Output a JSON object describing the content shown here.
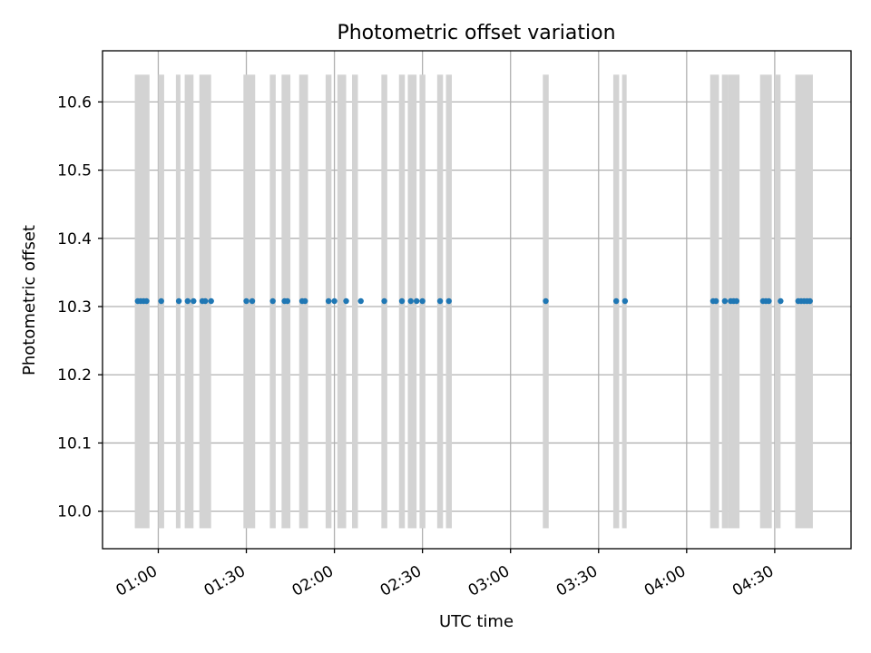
{
  "chart_data": {
    "type": "scatter",
    "title": "Photometric offset variation",
    "xlabel": "UTC time",
    "ylabel": "Photometric offset",
    "grid": true,
    "legend": "none",
    "xlim": [
      "00:41",
      "04:56"
    ],
    "ylim": [
      9.945,
      10.675
    ],
    "x_ticks": [
      "01:00",
      "01:30",
      "02:00",
      "02:30",
      "03:00",
      "03:30",
      "04:00",
      "04:30"
    ],
    "y_ticks": [
      10.0,
      10.1,
      10.2,
      10.3,
      10.4,
      10.5,
      10.6
    ],
    "colors": {
      "points": "#1f77b4",
      "bands": "#d3d3d3",
      "grid": "#b0b0b0"
    },
    "bands": {
      "ymin": 9.975,
      "ymax": 10.64,
      "intervals": [
        [
          "00:52",
          "00:57"
        ],
        [
          "01:00",
          "01:02"
        ],
        [
          "01:06",
          "01:07"
        ],
        [
          "01:09",
          "01:12"
        ],
        [
          "01:14",
          "01:18"
        ],
        [
          "01:29",
          "01:33"
        ],
        [
          "01:38",
          "01:40"
        ],
        [
          "01:42",
          "01:45"
        ],
        [
          "01:48",
          "01:51"
        ],
        [
          "01:57",
          "01:59"
        ],
        [
          "02:01",
          "02:04"
        ],
        [
          "02:06",
          "02:08"
        ],
        [
          "02:16",
          "02:18"
        ],
        [
          "02:22",
          "02:24"
        ],
        [
          "02:25",
          "02:28"
        ],
        [
          "02:29",
          "02:31"
        ],
        [
          "02:35",
          "02:37"
        ],
        [
          "02:38",
          "02:40"
        ],
        [
          "03:11",
          "03:13"
        ],
        [
          "03:35",
          "03:37"
        ],
        [
          "03:38",
          "03:39"
        ],
        [
          "04:08",
          "04:11"
        ],
        [
          "04:12",
          "04:14"
        ],
        [
          "04:14",
          "04:18"
        ],
        [
          "04:25",
          "04:29"
        ],
        [
          "04:30",
          "04:32"
        ],
        [
          "04:37",
          "04:43"
        ]
      ]
    },
    "series": [
      {
        "values": [
          {
            "x": "00:53",
            "y": 10.308
          },
          {
            "x": "00:54",
            "y": 10.308
          },
          {
            "x": "00:55",
            "y": 10.308
          },
          {
            "x": "00:56",
            "y": 10.308
          },
          {
            "x": "01:01",
            "y": 10.308
          },
          {
            "x": "01:07",
            "y": 10.308
          },
          {
            "x": "01:10",
            "y": 10.308
          },
          {
            "x": "01:12",
            "y": 10.308
          },
          {
            "x": "01:15",
            "y": 10.308
          },
          {
            "x": "01:16",
            "y": 10.308
          },
          {
            "x": "01:18",
            "y": 10.308
          },
          {
            "x": "01:30",
            "y": 10.308
          },
          {
            "x": "01:32",
            "y": 10.308
          },
          {
            "x": "01:39",
            "y": 10.308
          },
          {
            "x": "01:43",
            "y": 10.308
          },
          {
            "x": "01:44",
            "y": 10.308
          },
          {
            "x": "01:49",
            "y": 10.308
          },
          {
            "x": "01:50",
            "y": 10.308
          },
          {
            "x": "01:58",
            "y": 10.308
          },
          {
            "x": "02:00",
            "y": 10.308
          },
          {
            "x": "02:04",
            "y": 10.308
          },
          {
            "x": "02:09",
            "y": 10.308
          },
          {
            "x": "02:17",
            "y": 10.308
          },
          {
            "x": "02:23",
            "y": 10.308
          },
          {
            "x": "02:26",
            "y": 10.308
          },
          {
            "x": "02:28",
            "y": 10.308
          },
          {
            "x": "02:30",
            "y": 10.308
          },
          {
            "x": "02:36",
            "y": 10.308
          },
          {
            "x": "02:39",
            "y": 10.308
          },
          {
            "x": "03:12",
            "y": 10.308
          },
          {
            "x": "03:36",
            "y": 10.308
          },
          {
            "x": "03:39",
            "y": 10.308
          },
          {
            "x": "04:09",
            "y": 10.308
          },
          {
            "x": "04:10",
            "y": 10.308
          },
          {
            "x": "04:13",
            "y": 10.308
          },
          {
            "x": "04:15",
            "y": 10.308
          },
          {
            "x": "04:16",
            "y": 10.308
          },
          {
            "x": "04:17",
            "y": 10.308
          },
          {
            "x": "04:26",
            "y": 10.308
          },
          {
            "x": "04:27",
            "y": 10.308
          },
          {
            "x": "04:28",
            "y": 10.308
          },
          {
            "x": "04:32",
            "y": 10.308
          },
          {
            "x": "04:38",
            "y": 10.308
          },
          {
            "x": "04:39",
            "y": 10.308
          },
          {
            "x": "04:40",
            "y": 10.308
          },
          {
            "x": "04:41",
            "y": 10.308
          },
          {
            "x": "04:42",
            "y": 10.308
          }
        ]
      }
    ]
  }
}
